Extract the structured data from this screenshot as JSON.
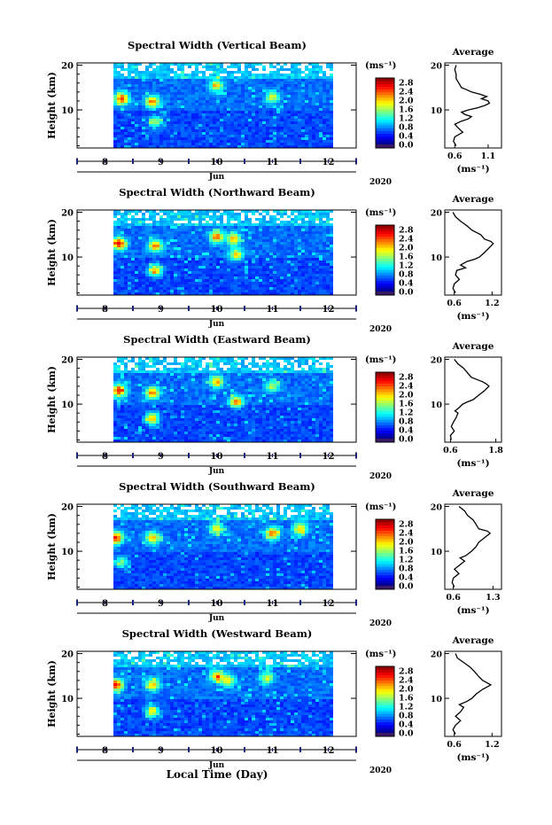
{
  "figure": {
    "xlabel": "Local Time (Day)",
    "month_label": "Jun",
    "year_label": "2020"
  },
  "chart_data": [
    {
      "type": "heatmap",
      "title": "Spectral Width (Vertical Beam)",
      "ylabel": "Height (km)",
      "x_ticks": [
        "8",
        "9",
        "10",
        "11",
        "12"
      ],
      "y_ticks": [
        "10",
        "20"
      ],
      "ylim": [
        1.5,
        20.5
      ],
      "xlim": [
        7.5,
        12.5
      ],
      "data_start_day": 8.15,
      "colorbar": {
        "unit": "(ms⁻¹)",
        "ticks": [
          "0.0",
          "0.4",
          "0.8",
          "1.2",
          "1.6",
          "2.0",
          "2.4",
          "2.8"
        ],
        "range": [
          0,
          3.0
        ]
      },
      "hotspots": [
        {
          "day": 8.3,
          "h": 12.5,
          "v": 2.4
        },
        {
          "day": 8.85,
          "h": 11.8,
          "v": 2.2
        },
        {
          "day": 8.9,
          "h": 7.3,
          "v": 1.6
        },
        {
          "day": 10.0,
          "h": 15.5,
          "v": 1.8
        },
        {
          "day": 11.0,
          "h": 12.8,
          "v": 1.7
        }
      ],
      "profile": {
        "title": "Average",
        "xlabel": "(ms⁻¹)",
        "x_ticks": [
          "0.6",
          "1.1"
        ],
        "xlim": [
          0.45,
          1.3
        ],
        "y_ticks": [
          "10",
          "20"
        ],
        "points": [
          [
            0.62,
            2
          ],
          [
            0.58,
            3
          ],
          [
            0.6,
            4
          ],
          [
            0.72,
            5
          ],
          [
            0.65,
            6
          ],
          [
            0.6,
            6.8
          ],
          [
            0.7,
            7.5
          ],
          [
            0.8,
            8
          ],
          [
            0.85,
            8.5
          ],
          [
            0.75,
            9
          ],
          [
            0.7,
            9.5
          ],
          [
            0.8,
            10
          ],
          [
            0.95,
            10.5
          ],
          [
            1.05,
            11
          ],
          [
            1.12,
            11.5
          ],
          [
            1.1,
            12
          ],
          [
            1.0,
            12.5
          ],
          [
            1.08,
            13
          ],
          [
            0.98,
            13.5
          ],
          [
            0.85,
            14
          ],
          [
            0.78,
            14.5
          ],
          [
            0.7,
            15
          ],
          [
            0.66,
            16
          ],
          [
            0.62,
            17
          ],
          [
            0.62,
            18
          ],
          [
            0.6,
            19
          ],
          [
            0.62,
            20
          ]
        ]
      }
    },
    {
      "type": "heatmap",
      "title": "Spectral Width (Northward Beam)",
      "ylabel": "Height (km)",
      "x_ticks": [
        "8",
        "9",
        "10",
        "11",
        "12"
      ],
      "y_ticks": [
        "10",
        "20"
      ],
      "ylim": [
        1.5,
        20.5
      ],
      "xlim": [
        7.5,
        12.5
      ],
      "data_start_day": 8.15,
      "colorbar": {
        "unit": "(ms⁻¹)",
        "ticks": [
          "0.0",
          "0.4",
          "0.8",
          "1.2",
          "1.6",
          "2.0",
          "2.4",
          "2.8"
        ],
        "range": [
          0,
          3.0
        ]
      },
      "hotspots": [
        {
          "day": 8.25,
          "h": 13.0,
          "v": 2.5
        },
        {
          "day": 8.9,
          "h": 12.5,
          "v": 2.2
        },
        {
          "day": 8.9,
          "h": 7.0,
          "v": 2.0
        },
        {
          "day": 10.0,
          "h": 14.5,
          "v": 2.2
        },
        {
          "day": 10.3,
          "h": 14.0,
          "v": 2.0
        },
        {
          "day": 10.35,
          "h": 10.5,
          "v": 1.9
        }
      ],
      "profile": {
        "title": "Average",
        "xlabel": "(ms⁻¹)",
        "x_ticks": [
          "0.6",
          "1.2"
        ],
        "xlim": [
          0.45,
          1.35
        ],
        "y_ticks": [
          "10",
          "20"
        ],
        "points": [
          [
            0.62,
            2
          ],
          [
            0.58,
            3
          ],
          [
            0.6,
            4
          ],
          [
            0.68,
            5
          ],
          [
            0.62,
            6
          ],
          [
            0.64,
            7
          ],
          [
            0.78,
            7.6
          ],
          [
            0.7,
            8.2
          ],
          [
            0.8,
            9
          ],
          [
            0.92,
            9.5
          ],
          [
            1.0,
            10
          ],
          [
            1.08,
            11
          ],
          [
            1.15,
            12
          ],
          [
            1.22,
            13
          ],
          [
            1.18,
            13.5
          ],
          [
            1.08,
            14
          ],
          [
            1.02,
            15
          ],
          [
            0.95,
            15.5
          ],
          [
            0.88,
            16
          ],
          [
            0.8,
            17
          ],
          [
            0.7,
            18
          ],
          [
            0.62,
            19
          ],
          [
            0.58,
            20
          ]
        ]
      }
    },
    {
      "type": "heatmap",
      "title": "Spectral Width (Eastward Beam)",
      "ylabel": "Height (km)",
      "x_ticks": [
        "8",
        "9",
        "10",
        "11",
        "12"
      ],
      "y_ticks": [
        "10",
        "20"
      ],
      "ylim": [
        1.5,
        20.5
      ],
      "xlim": [
        7.5,
        12.5
      ],
      "data_start_day": 8.15,
      "colorbar": {
        "unit": "(ms⁻¹)",
        "ticks": [
          "0.0",
          "0.4",
          "0.8",
          "1.2",
          "1.6",
          "2.0",
          "2.4",
          "2.8"
        ],
        "range": [
          0,
          3.0
        ]
      },
      "hotspots": [
        {
          "day": 8.25,
          "h": 13.0,
          "v": 2.4
        },
        {
          "day": 8.85,
          "h": 12.5,
          "v": 2.2
        },
        {
          "day": 8.85,
          "h": 6.8,
          "v": 2.1
        },
        {
          "day": 10.0,
          "h": 15.0,
          "v": 2.0
        },
        {
          "day": 10.35,
          "h": 10.5,
          "v": 2.2
        },
        {
          "day": 11.0,
          "h": 14.0,
          "v": 1.6
        }
      ],
      "profile": {
        "title": "Average",
        "xlabel": "(ms⁻¹)",
        "x_ticks": [
          "0.6",
          "1.8"
        ],
        "xlim": [
          0.45,
          1.95
        ],
        "y_ticks": [
          "10",
          "20"
        ],
        "points": [
          [
            0.62,
            2
          ],
          [
            0.6,
            3
          ],
          [
            0.7,
            4
          ],
          [
            0.62,
            5
          ],
          [
            0.68,
            6
          ],
          [
            0.75,
            7
          ],
          [
            0.8,
            8
          ],
          [
            0.72,
            8.5
          ],
          [
            0.8,
            9
          ],
          [
            0.92,
            10
          ],
          [
            1.05,
            10.5
          ],
          [
            1.2,
            11
          ],
          [
            1.35,
            12
          ],
          [
            1.5,
            13
          ],
          [
            1.62,
            14
          ],
          [
            1.55,
            14.5
          ],
          [
            1.45,
            15
          ],
          [
            1.3,
            15.5
          ],
          [
            1.15,
            16
          ],
          [
            1.05,
            17
          ],
          [
            0.95,
            18
          ],
          [
            0.8,
            19
          ],
          [
            0.7,
            20
          ]
        ]
      }
    },
    {
      "type": "heatmap",
      "title": "Spectral Width (Southward Beam)",
      "ylabel": "Height (km)",
      "x_ticks": [
        "8",
        "9",
        "10",
        "11",
        "12"
      ],
      "y_ticks": [
        "10",
        "20"
      ],
      "ylim": [
        1.5,
        20.5
      ],
      "xlim": [
        7.5,
        12.5
      ],
      "data_start_day": 8.15,
      "colorbar": {
        "unit": "(ms⁻¹)",
        "ticks": [
          "0.0",
          "0.4",
          "0.8",
          "1.2",
          "1.6",
          "2.0",
          "2.4",
          "2.8"
        ],
        "range": [
          0,
          3.0
        ]
      },
      "hotspots": [
        {
          "day": 8.2,
          "h": 13.0,
          "v": 2.5
        },
        {
          "day": 8.85,
          "h": 13.0,
          "v": 2.0
        },
        {
          "day": 10.0,
          "h": 15.0,
          "v": 1.8
        },
        {
          "day": 11.0,
          "h": 14.0,
          "v": 2.2
        },
        {
          "day": 11.5,
          "h": 15.0,
          "v": 2.0
        },
        {
          "day": 8.3,
          "h": 7.5,
          "v": 1.5
        }
      ],
      "profile": {
        "title": "Average",
        "xlabel": "(ms⁻¹)",
        "x_ticks": [
          "0.6",
          "1.3"
        ],
        "xlim": [
          0.45,
          1.45
        ],
        "y_ticks": [
          "10",
          "20"
        ],
        "points": [
          [
            0.62,
            2
          ],
          [
            0.58,
            3
          ],
          [
            0.6,
            4
          ],
          [
            0.7,
            5
          ],
          [
            0.62,
            6
          ],
          [
            0.72,
            7
          ],
          [
            0.8,
            7.8
          ],
          [
            0.72,
            8.5
          ],
          [
            0.82,
            9
          ],
          [
            0.92,
            10
          ],
          [
            1.0,
            11
          ],
          [
            1.05,
            12
          ],
          [
            1.15,
            13
          ],
          [
            1.25,
            14
          ],
          [
            1.2,
            14.5
          ],
          [
            1.05,
            15
          ],
          [
            1.0,
            16
          ],
          [
            0.95,
            17
          ],
          [
            0.85,
            18
          ],
          [
            0.8,
            19
          ],
          [
            0.7,
            20
          ]
        ]
      }
    },
    {
      "type": "heatmap",
      "title": "Spectral Width (Westward Beam)",
      "ylabel": "Height (km)",
      "x_ticks": [
        "8",
        "9",
        "10",
        "11",
        "12"
      ],
      "y_ticks": [
        "10",
        "20"
      ],
      "ylim": [
        1.5,
        20.5
      ],
      "xlim": [
        7.5,
        12.5
      ],
      "data_start_day": 8.15,
      "colorbar": {
        "unit": "(ms⁻¹)",
        "ticks": [
          "0.0",
          "0.4",
          "0.8",
          "1.2",
          "1.6",
          "2.0",
          "2.4",
          "2.8"
        ],
        "range": [
          0,
          3.0
        ]
      },
      "hotspots": [
        {
          "day": 8.2,
          "h": 13.0,
          "v": 2.5
        },
        {
          "day": 8.85,
          "h": 13.0,
          "v": 2.0
        },
        {
          "day": 8.85,
          "h": 7.0,
          "v": 1.9
        },
        {
          "day": 10.0,
          "h": 15.0,
          "v": 2.0
        },
        {
          "day": 10.2,
          "h": 14.0,
          "v": 1.8
        },
        {
          "day": 10.9,
          "h": 14.5,
          "v": 1.7
        }
      ],
      "profile": {
        "title": "Average",
        "xlabel": "(ms⁻¹)",
        "x_ticks": [
          "0.6",
          "1.2"
        ],
        "xlim": [
          0.45,
          1.35
        ],
        "y_ticks": [
          "10",
          "20"
        ],
        "points": [
          [
            0.62,
            2
          ],
          [
            0.58,
            3
          ],
          [
            0.62,
            4
          ],
          [
            0.7,
            5
          ],
          [
            0.62,
            6
          ],
          [
            0.7,
            7
          ],
          [
            0.75,
            8
          ],
          [
            0.68,
            8.6
          ],
          [
            0.8,
            9.3
          ],
          [
            0.88,
            10
          ],
          [
            0.95,
            11
          ],
          [
            1.05,
            12
          ],
          [
            1.18,
            13
          ],
          [
            1.12,
            13.5
          ],
          [
            1.05,
            14
          ],
          [
            0.98,
            15
          ],
          [
            0.92,
            16
          ],
          [
            0.85,
            17
          ],
          [
            0.75,
            18
          ],
          [
            0.65,
            19
          ],
          [
            0.62,
            20
          ]
        ]
      }
    }
  ]
}
